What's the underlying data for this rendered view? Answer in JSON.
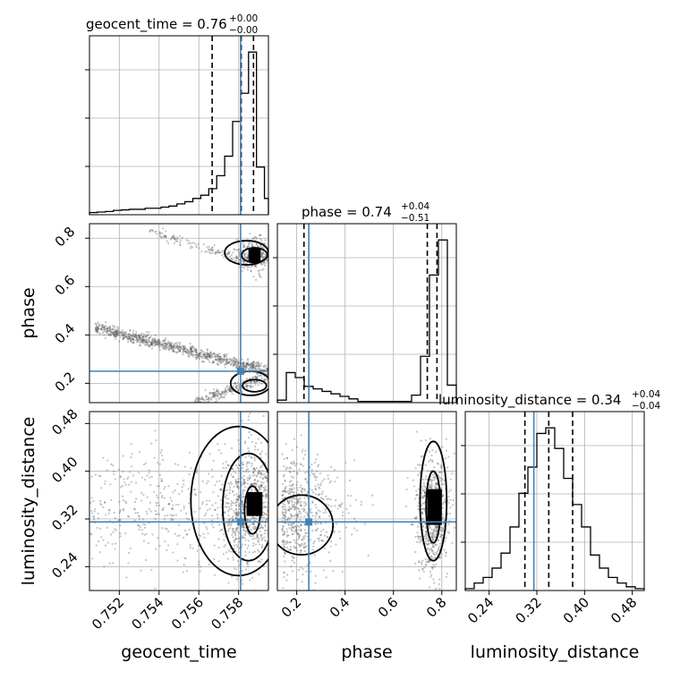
{
  "colors": {
    "truth": "#4682b4",
    "hist": "#000000",
    "grid": "#b0b0b0",
    "background": "#ffffff"
  },
  "chart_data": {
    "type": "corner",
    "parameters": [
      "geocent_time",
      "phase",
      "luminosity_distance"
    ],
    "truths": {
      "geocent_time": 0.7581,
      "phase": 0.25,
      "luminosity_distance": 0.315
    },
    "axes": {
      "geocent_time": {
        "range": [
          0.7505,
          0.7595
        ],
        "ticks": [
          "0.752",
          "0.754",
          "0.756",
          "0.758"
        ],
        "tick_values": [
          0.752,
          0.754,
          0.756,
          0.758
        ],
        "label": "geocent_time"
      },
      "phase": {
        "range": [
          0.12,
          0.86
        ],
        "ticks": [
          "0.2",
          "0.4",
          "0.6",
          "0.8"
        ],
        "tick_values": [
          0.2,
          0.4,
          0.6,
          0.8
        ],
        "label": "phase"
      },
      "luminosity_distance": {
        "range": [
          0.2,
          0.5
        ],
        "ticks": [
          "0.24",
          "0.32",
          "0.40",
          "0.48"
        ],
        "tick_values": [
          0.24,
          0.32,
          0.4,
          0.48
        ],
        "label": "luminosity_distance"
      }
    },
    "titles": [
      {
        "param": "geocent_time",
        "main": "geocent_time = 0.76",
        "plus": "+0.00",
        "minus": "−0.00"
      },
      {
        "param": "phase",
        "main": "phase = 0.74",
        "plus": "+0.04",
        "minus": "−0.51"
      },
      {
        "param": "luminosity_distance",
        "main": "luminosity_distance = 0.34",
        "plus": "+0.04",
        "minus": "−0.04"
      }
    ],
    "histograms": {
      "geocent_time": {
        "bin_edges": [
          0.7505,
          0.7509,
          0.7513,
          0.7517,
          0.7521,
          0.7525,
          0.7529,
          0.7533,
          0.7537,
          0.7541,
          0.7545,
          0.7549,
          0.7553,
          0.7557,
          0.7561,
          0.7565,
          0.7569,
          0.7573,
          0.7577,
          0.7581,
          0.7585,
          0.7589,
          0.7593,
          0.7597
        ],
        "counts": [
          2,
          2.5,
          3,
          4,
          4.5,
          5,
          5,
          6,
          6,
          7,
          8,
          10,
          12,
          15,
          18,
          24,
          36,
          54,
          86,
          112,
          150,
          44,
          15
        ],
        "quantiles": [
          0.75667,
          0.75813,
          0.75875
        ]
      },
      "phase": {
        "bin_edges": [
          0.12,
          0.157,
          0.194,
          0.231,
          0.268,
          0.305,
          0.342,
          0.379,
          0.416,
          0.453,
          0.49,
          0.527,
          0.564,
          0.601,
          0.638,
          0.675,
          0.712,
          0.749,
          0.786,
          0.823,
          0.86
        ],
        "counts": [
          2,
          24,
          20,
          13,
          11,
          9,
          7,
          5,
          3,
          1,
          1,
          1,
          1,
          1,
          1,
          6,
          37,
          102,
          130,
          14
        ],
        "quantiles": [
          0.23,
          0.74,
          0.78
        ]
      },
      "luminosity_distance": {
        "bin_edges": [
          0.2,
          0.215,
          0.23,
          0.245,
          0.26,
          0.275,
          0.29,
          0.305,
          0.32,
          0.335,
          0.35,
          0.365,
          0.38,
          0.395,
          0.41,
          0.425,
          0.44,
          0.455,
          0.47,
          0.485,
          0.5
        ],
        "counts": [
          1,
          4,
          7,
          12,
          20,
          34,
          52,
          66,
          84,
          87,
          76,
          60,
          46,
          34,
          19,
          12,
          7,
          4,
          2,
          1
        ],
        "quantiles": [
          0.3,
          0.34,
          0.38
        ]
      }
    },
    "scatter_panels": [
      {
        "x": "geocent_time",
        "y": "phase",
        "contours": true
      },
      {
        "x": "geocent_time",
        "y": "luminosity_distance",
        "contours": true
      },
      {
        "x": "phase",
        "y": "luminosity_distance",
        "contours": true
      }
    ],
    "grid": true
  }
}
